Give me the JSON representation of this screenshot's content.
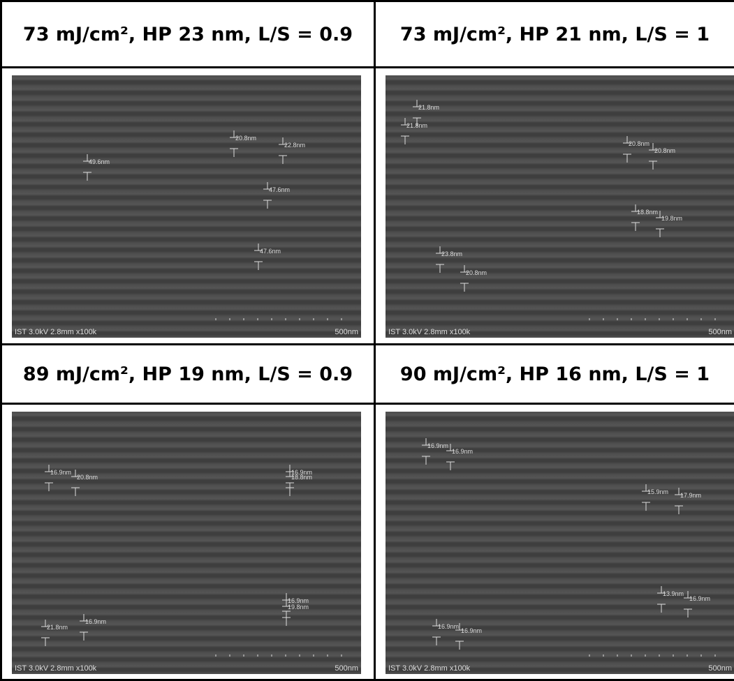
{
  "panels": [
    {
      "title": "73 mJ/cm², HP 23 nm, L/S = 0.9",
      "measurements": [
        "20.8nm",
        "22.8nm",
        "49.6nm",
        "47.6nm",
        "47.6nm"
      ],
      "info": "IST 3.0kV 2.8mm x100k",
      "scale": "500nm"
    },
    {
      "title": "73 mJ/cm², HP 21 nm, L/S = 1",
      "measurements": [
        "21.8nm",
        "21.8nm",
        "20.8nm",
        "20.8nm",
        "18.8nm",
        "19.8nm",
        "23.8nm",
        "20.8nm"
      ],
      "info": "IST 3.0kV 2.8mm x100k",
      "scale": "500nm"
    },
    {
      "title": "89 mJ/cm², HP 19 nm, L/S = 0.9",
      "measurements": [
        "16.9nm",
        "20.8nm",
        "16.9nm",
        "18.8nm",
        "21.8nm",
        "16.9nm",
        "16.9nm",
        "19.8nm"
      ],
      "info": "IST 3.0kV 2.8mm x100k",
      "scale": "500nm"
    },
    {
      "title": "90 mJ/cm², HP 16 nm, L/S = 1",
      "measurements": [
        "16.9nm",
        "16.9nm",
        "15.9nm",
        "17.9nm",
        "13.9nm",
        "16.9nm",
        "16.9nm",
        "16.9nm"
      ],
      "info": "IST 3.0kV 2.8mm x100k",
      "scale": "500nm"
    }
  ]
}
